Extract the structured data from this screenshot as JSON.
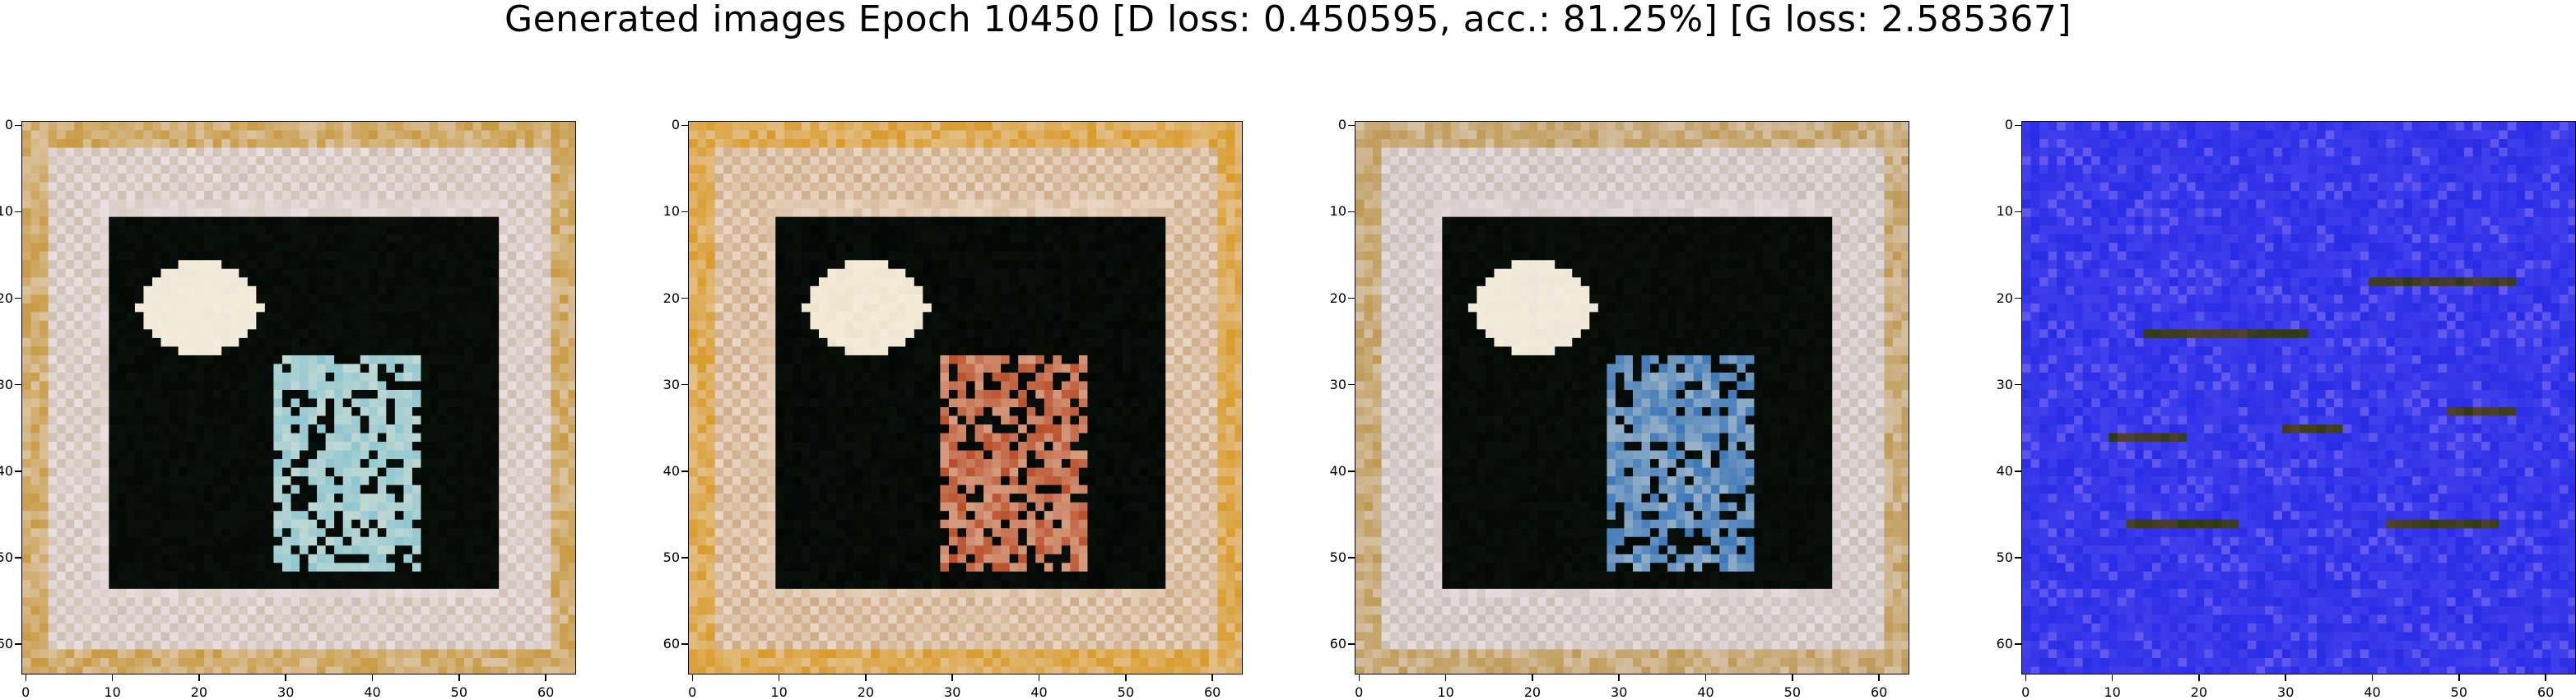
{
  "figure": {
    "title": "Generated images Epoch 10450 [D loss: 0.450595, acc.: 81.25%] [G loss: 2.585367]"
  },
  "axes": {
    "x_ticks": [
      "0",
      "10",
      "20",
      "30",
      "40",
      "50",
      "60"
    ],
    "y_ticks": [
      "0",
      "10",
      "20",
      "30",
      "40",
      "50",
      "60"
    ],
    "range": [
      0,
      63
    ]
  },
  "panels": [
    {
      "id": "sample-1",
      "style": "warm-dark-frame",
      "palette": {
        "border": "#e9dfe0",
        "stripe": "#c9b7a8",
        "accent": "#c89a42",
        "center": "#050805",
        "figure": "#8fc6d0",
        "highlight": "#f4ecd8"
      }
    },
    {
      "id": "sample-2",
      "style": "warm-dark-frame",
      "palette": {
        "border": "#ead6c4",
        "stripe": "#c7a37a",
        "accent": "#d99b2a",
        "center": "#040604",
        "figure": "#b9502c",
        "highlight": "#f4ecd8"
      }
    },
    {
      "id": "sample-3",
      "style": "warm-dark-frame",
      "palette": {
        "border": "#e6dcde",
        "stripe": "#c2b6ad",
        "accent": "#bf9a55",
        "center": "#050805",
        "figure": "#3d78b8",
        "highlight": "#f4ecd8"
      }
    },
    {
      "id": "sample-4",
      "style": "blue-noise",
      "palette": {
        "border": "#3a2ee8",
        "stripe": "#5a55f4",
        "accent": "#7a6df0",
        "center": "#2a2ce6",
        "figure": "#2e3a10",
        "highlight": "#8c4a6a"
      }
    }
  ]
}
